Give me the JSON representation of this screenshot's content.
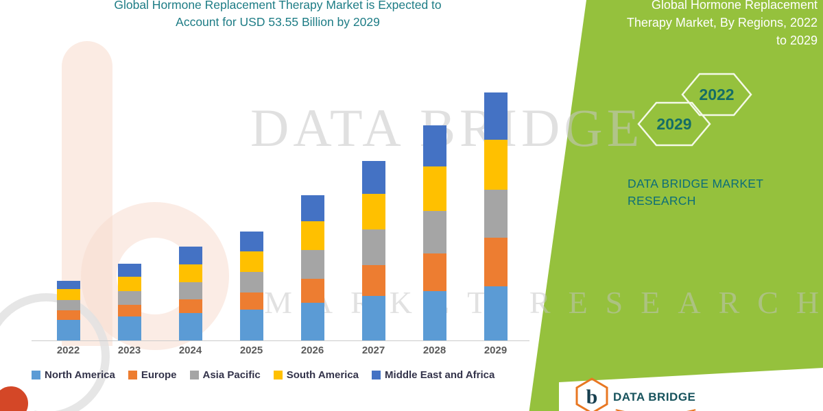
{
  "main_title": {
    "line1": "Global Hormone Replacement Therapy Market is Expected to",
    "line2": "Account for USD 53.55 Billion by 2029"
  },
  "chart_data": {
    "type": "bar",
    "stacked": true,
    "title": "Global Hormone Replacement Therapy Market is Expected to Account for USD 53.55 Billion by 2029",
    "value_unit": "USD Billion",
    "categories": [
      "2022",
      "2023",
      "2024",
      "2025",
      "2026",
      "2027",
      "2028",
      "2029"
    ],
    "series": [
      {
        "name": "North America",
        "color": "#5B9BD5",
        "values": [
          4.4,
          5.2,
          5.9,
          6.7,
          8.1,
          9.6,
          10.7,
          11.7
        ]
      },
      {
        "name": "Europe",
        "color": "#ED7D31",
        "values": [
          2.1,
          2.5,
          3.0,
          3.7,
          5.2,
          6.7,
          8.1,
          10.5
        ]
      },
      {
        "name": "Asia Pacific",
        "color": "#A5A5A5",
        "values": [
          2.2,
          3.0,
          3.7,
          4.4,
          6.2,
          7.7,
          9.2,
          10.4
        ]
      },
      {
        "name": "South America",
        "color": "#FFC000",
        "values": [
          2.4,
          3.1,
          3.8,
          4.4,
          6.2,
          7.7,
          9.5,
          10.7
        ]
      },
      {
        "name": "Middle East and Africa",
        "color": "#4472C4",
        "values": [
          1.8,
          2.8,
          3.8,
          4.4,
          5.6,
          7.0,
          8.9,
          10.25
        ]
      }
    ],
    "totals": [
      12.9,
      16.6,
      20.2,
      23.6,
      31.3,
      38.7,
      46.4,
      53.55
    ],
    "ylim": [
      0,
      55
    ],
    "grid": false,
    "legend_position": "bottom"
  },
  "panel": {
    "title_lines": [
      "Global Hormone Replacement",
      "Therapy Market, By Regions, 2022",
      "to 2029"
    ],
    "hex_years": [
      "2022",
      "2029"
    ],
    "brand_lines": [
      "DATA BRIDGE MARKET",
      "RESEARCH"
    ]
  },
  "watermark": {
    "line1": "DATA BRIDGE",
    "line2": "MARKET RESEARCH"
  },
  "footer_logo": {
    "letter": "b",
    "name": "DATA BRIDGE"
  },
  "colors": {
    "panel_green": "#95C13D",
    "title_teal": "#1D7C85",
    "brand_teal": "#0C6E78",
    "logo_orange": "#E87722"
  }
}
